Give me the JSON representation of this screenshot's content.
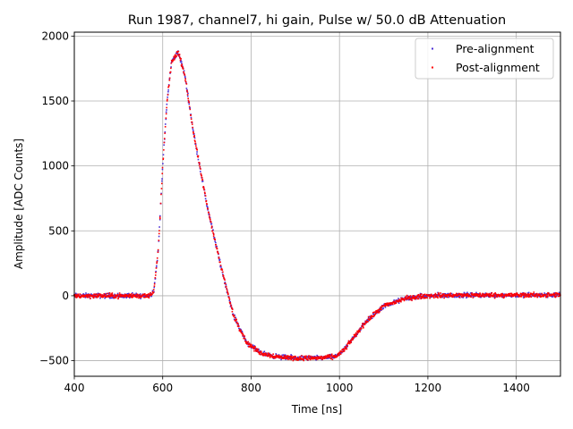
{
  "chart_data": {
    "type": "scatter",
    "title": "Run 1987, channel7, hi gain, Pulse w/ 50.0 dB Attenuation",
    "xlabel": "Time [ns]",
    "ylabel": "Amplitude [ADC Counts]",
    "xlim": [
      400,
      1500
    ],
    "ylim": [
      -620,
      2030
    ],
    "xticks": [
      400,
      600,
      800,
      1000,
      1200,
      1400
    ],
    "yticks": [
      -500,
      0,
      500,
      1000,
      1500,
      2000
    ],
    "grid": true,
    "legend_position": "top-right",
    "pulse_shape": {
      "x": [
        400,
        570,
        580,
        590,
        600,
        610,
        620,
        635,
        650,
        670,
        700,
        730,
        760,
        790,
        820,
        860,
        900,
        950,
        990,
        1010,
        1030,
        1060,
        1100,
        1150,
        1200,
        1300,
        1400,
        1500
      ],
      "y": [
        0,
        0,
        40,
        350,
        1000,
        1500,
        1800,
        1880,
        1700,
        1250,
        700,
        250,
        -150,
        -360,
        -440,
        -470,
        -480,
        -480,
        -470,
        -420,
        -330,
        -200,
        -80,
        -20,
        0,
        5,
        5,
        5
      ]
    },
    "series": [
      {
        "name": "Pre-alignment",
        "color": "#4b2fd6"
      },
      {
        "name": "Post-alignment",
        "color": "#ff0000"
      }
    ]
  }
}
